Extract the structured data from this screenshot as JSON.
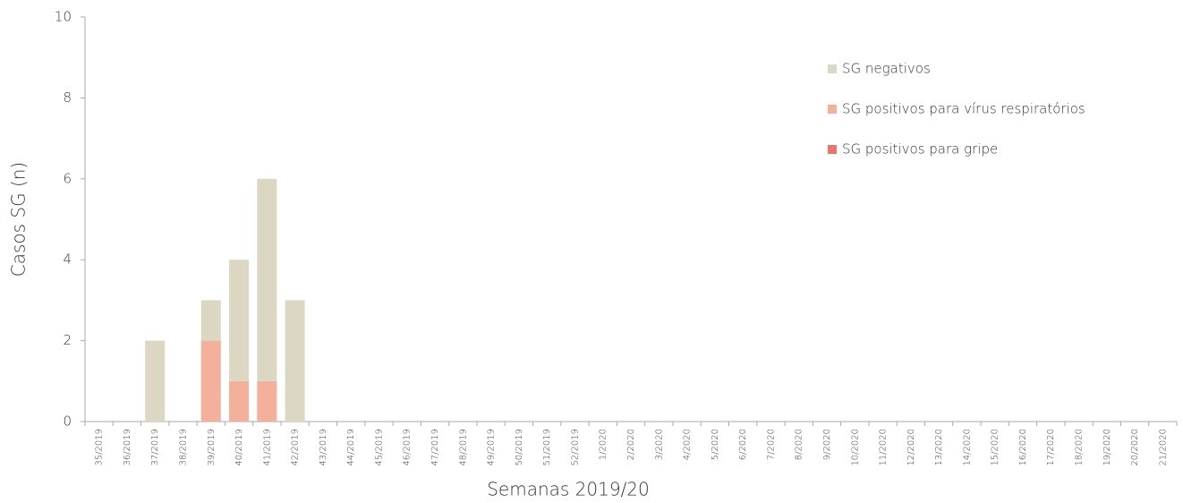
{
  "chart_data": {
    "type": "stacked_bar",
    "y_label": "Casos SG (n)",
    "x_label": "Semanas 2019/20",
    "categories": [
      "35/2019",
      "36/2019",
      "37/2019",
      "38/2019",
      "39/2019",
      "40/2019",
      "41/2019",
      "42/2019",
      "43/2019",
      "44/2019",
      "45/2019",
      "46/2019",
      "47/2019",
      "48/2019",
      "49/2019",
      "50/2019",
      "51/2019",
      "52/2019",
      "1/2020",
      "2/2020",
      "3/2020",
      "4/2020",
      "5/2020",
      "6/2020",
      "7/2020",
      "8/2020",
      "9/2020",
      "10/2020",
      "11/2020",
      "12/2020",
      "13/2020",
      "14/2020",
      "15/2020",
      "16/2020",
      "17/2020",
      "18/2020",
      "19/2020",
      "20/2020",
      "21/2020"
    ],
    "series": [
      {
        "name": "SG positivos para gripe",
        "color": "#e8776a",
        "values": [
          0,
          0,
          0,
          0,
          0,
          0,
          0,
          0,
          0,
          0,
          0,
          0,
          0,
          0,
          0,
          0,
          0,
          0,
          0,
          0,
          0,
          0,
          0,
          0,
          0,
          0,
          0,
          0,
          0,
          0,
          0,
          0,
          0,
          0,
          0,
          0,
          0,
          0,
          0
        ]
      },
      {
        "name": "SG positivos para vírus respiratórios",
        "color": "#f4b09b",
        "values": [
          0,
          0,
          0,
          0,
          2,
          1,
          1,
          0,
          0,
          0,
          0,
          0,
          0,
          0,
          0,
          0,
          0,
          0,
          0,
          0,
          0,
          0,
          0,
          0,
          0,
          0,
          0,
          0,
          0,
          0,
          0,
          0,
          0,
          0,
          0,
          0,
          0,
          0,
          0
        ]
      },
      {
        "name": "SG negativos",
        "color": "#dcd7c3",
        "values": [
          0,
          0,
          2,
          0,
          1,
          3,
          5,
          3,
          0,
          0,
          0,
          0,
          0,
          0,
          0,
          0,
          0,
          0,
          0,
          0,
          0,
          0,
          0,
          0,
          0,
          0,
          0,
          0,
          0,
          0,
          0,
          0,
          0,
          0,
          0,
          0,
          0,
          0,
          0
        ]
      }
    ],
    "ylim": [
      0,
      10
    ],
    "yticks": [
      0,
      2,
      4,
      6,
      8,
      10
    ],
    "grid": false,
    "legend": "upper right"
  }
}
